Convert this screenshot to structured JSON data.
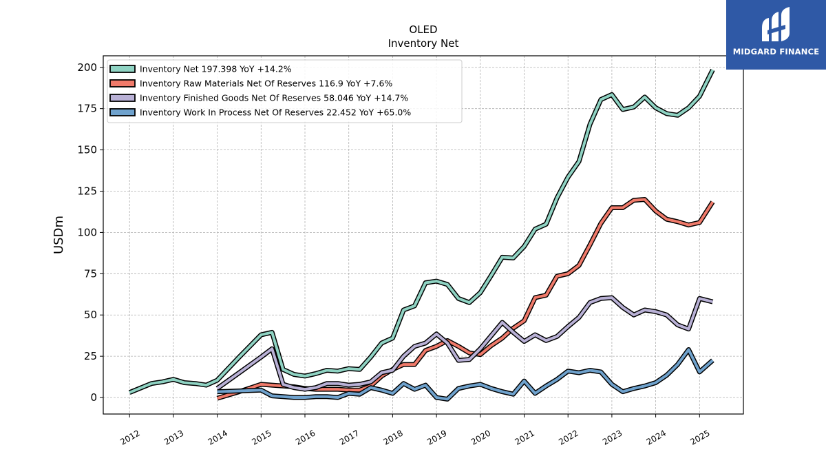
{
  "chart_data": {
    "type": "line",
    "title": "OLED",
    "subtitle": "Inventory Net",
    "xlabel": "",
    "ylabel": "USDm",
    "xlim": [
      2011.4,
      2026.0
    ],
    "ylim": [
      -10,
      207
    ],
    "x_ticks": [
      "2012",
      "2013",
      "2014",
      "2015",
      "2016",
      "2017",
      "2018",
      "2019",
      "2020",
      "2021",
      "2022",
      "2023",
      "2024",
      "2025"
    ],
    "y_ticks": [
      "0",
      "25",
      "50",
      "75",
      "100",
      "125",
      "150",
      "175",
      "200"
    ],
    "grid": true,
    "legend_position": "top-left",
    "series": [
      {
        "name": "Inventory Net",
        "legend_label": "Inventory Net  197.398 YoY +14.2%",
        "color": "#8fd3c3",
        "points": [
          [
            2012.0,
            3
          ],
          [
            2012.5,
            8.5
          ],
          [
            2012.75,
            9.5
          ],
          [
            2013.0,
            11
          ],
          [
            2013.25,
            9
          ],
          [
            2013.5,
            8.5
          ],
          [
            2013.75,
            7.5
          ],
          [
            2014.0,
            10.5
          ],
          [
            2014.5,
            24.5
          ],
          [
            2015.0,
            38
          ],
          [
            2015.25,
            39.5
          ],
          [
            2015.5,
            17
          ],
          [
            2015.75,
            14
          ],
          [
            2016.0,
            13
          ],
          [
            2016.25,
            14.5
          ],
          [
            2016.5,
            16.5
          ],
          [
            2016.75,
            16
          ],
          [
            2017.0,
            17.5
          ],
          [
            2017.25,
            17
          ],
          [
            2017.5,
            24.5
          ],
          [
            2017.75,
            33
          ],
          [
            2018.0,
            36
          ],
          [
            2018.25,
            53
          ],
          [
            2018.5,
            55.5
          ],
          [
            2018.75,
            69.5
          ],
          [
            2019.0,
            70.5
          ],
          [
            2019.25,
            68.5
          ],
          [
            2019.5,
            60
          ],
          [
            2019.75,
            57.5
          ],
          [
            2020.0,
            63.5
          ],
          [
            2020.25,
            74
          ],
          [
            2020.5,
            85
          ],
          [
            2020.75,
            84.5
          ],
          [
            2021.0,
            91.5
          ],
          [
            2021.25,
            102
          ],
          [
            2021.5,
            105
          ],
          [
            2021.75,
            121
          ],
          [
            2022.0,
            133.5
          ],
          [
            2022.25,
            143
          ],
          [
            2022.5,
            165.5
          ],
          [
            2022.75,
            180.5
          ],
          [
            2023.0,
            183.5
          ],
          [
            2023.25,
            174.5
          ],
          [
            2023.5,
            176
          ],
          [
            2023.75,
            182
          ],
          [
            2024.0,
            175.5
          ],
          [
            2024.25,
            172
          ],
          [
            2024.5,
            171
          ],
          [
            2024.75,
            175.5
          ],
          [
            2025.0,
            182.5
          ],
          [
            2025.3,
            198.5
          ]
        ]
      },
      {
        "name": "Inventory Raw Materials Net Of Reserves",
        "legend_label": "Inventory Raw Materials Net Of Reserves  116.9 YoY +7.6%",
        "color": "#f07a6a",
        "points": [
          [
            2014.0,
            -0.5
          ],
          [
            2014.5,
            3.5
          ],
          [
            2015.0,
            8
          ],
          [
            2015.25,
            7.5
          ],
          [
            2015.5,
            7
          ],
          [
            2015.75,
            6.5
          ],
          [
            2016.0,
            5.5
          ],
          [
            2016.25,
            5
          ],
          [
            2016.5,
            5
          ],
          [
            2016.75,
            5
          ],
          [
            2017.0,
            4.5
          ],
          [
            2017.25,
            4.5
          ],
          [
            2017.5,
            7
          ],
          [
            2017.75,
            13
          ],
          [
            2018.0,
            17
          ],
          [
            2018.25,
            20
          ],
          [
            2018.5,
            20
          ],
          [
            2018.75,
            28.5
          ],
          [
            2019.0,
            31
          ],
          [
            2019.25,
            34.5
          ],
          [
            2019.5,
            31
          ],
          [
            2019.75,
            27
          ],
          [
            2020.0,
            26
          ],
          [
            2020.25,
            31.5
          ],
          [
            2020.5,
            36
          ],
          [
            2020.75,
            42
          ],
          [
            2021.0,
            46.5
          ],
          [
            2021.25,
            60.5
          ],
          [
            2021.5,
            62
          ],
          [
            2021.75,
            73.5
          ],
          [
            2022.0,
            75
          ],
          [
            2022.25,
            80
          ],
          [
            2022.5,
            92.5
          ],
          [
            2022.75,
            105.5
          ],
          [
            2023.0,
            115
          ],
          [
            2023.25,
            115
          ],
          [
            2023.5,
            119.5
          ],
          [
            2023.75,
            120
          ],
          [
            2024.0,
            113
          ],
          [
            2024.25,
            108
          ],
          [
            2024.5,
            106.5
          ],
          [
            2024.75,
            104.5
          ],
          [
            2025.0,
            106
          ],
          [
            2025.3,
            118.5
          ]
        ]
      },
      {
        "name": "Inventory Finished Goods Net Of Reserves",
        "legend_label": "Inventory Finished Goods Net Of Reserves  58.046 YoY +14.7%",
        "color": "#b9b1d6",
        "points": [
          [
            2014.0,
            5.5
          ],
          [
            2014.5,
            15
          ],
          [
            2015.0,
            24.5
          ],
          [
            2015.25,
            29.5
          ],
          [
            2015.5,
            8
          ],
          [
            2015.75,
            6
          ],
          [
            2016.0,
            5
          ],
          [
            2016.25,
            6
          ],
          [
            2016.5,
            8.5
          ],
          [
            2016.75,
            8.5
          ],
          [
            2017.0,
            7.5
          ],
          [
            2017.25,
            8
          ],
          [
            2017.5,
            9.5
          ],
          [
            2017.75,
            15
          ],
          [
            2018.0,
            16.5
          ],
          [
            2018.25,
            25
          ],
          [
            2018.5,
            31
          ],
          [
            2018.75,
            33
          ],
          [
            2019.0,
            38.5
          ],
          [
            2019.25,
            33
          ],
          [
            2019.5,
            22.5
          ],
          [
            2019.75,
            23
          ],
          [
            2020.0,
            29.5
          ],
          [
            2020.25,
            37.5
          ],
          [
            2020.5,
            45.5
          ],
          [
            2020.75,
            39.5
          ],
          [
            2021.0,
            34
          ],
          [
            2021.25,
            38
          ],
          [
            2021.5,
            34.5
          ],
          [
            2021.75,
            37
          ],
          [
            2022.0,
            43
          ],
          [
            2022.25,
            48.5
          ],
          [
            2022.5,
            57.5
          ],
          [
            2022.75,
            60
          ],
          [
            2023.0,
            60.5
          ],
          [
            2023.25,
            54.5
          ],
          [
            2023.5,
            50
          ],
          [
            2023.75,
            53
          ],
          [
            2024.0,
            52
          ],
          [
            2024.25,
            50
          ],
          [
            2024.5,
            44
          ],
          [
            2024.75,
            41.5
          ],
          [
            2025.0,
            60
          ],
          [
            2025.3,
            58
          ]
        ]
      },
      {
        "name": "Inventory Work In Process Net Of Reserves",
        "legend_label": "Inventory Work In Process Net Of Reserves  22.452 YoY +65.0%",
        "color": "#6fa2cd",
        "points": [
          [
            2014.0,
            3.5
          ],
          [
            2014.5,
            4
          ],
          [
            2015.0,
            4.5
          ],
          [
            2015.25,
            1
          ],
          [
            2015.5,
            0.5
          ],
          [
            2015.75,
            0
          ],
          [
            2016.0,
            0
          ],
          [
            2016.25,
            0.5
          ],
          [
            2016.5,
            0.5
          ],
          [
            2016.75,
            0
          ],
          [
            2017.0,
            2.5
          ],
          [
            2017.25,
            2
          ],
          [
            2017.5,
            6
          ],
          [
            2017.75,
            4.5
          ],
          [
            2018.0,
            2.5
          ],
          [
            2018.25,
            8.5
          ],
          [
            2018.5,
            5
          ],
          [
            2018.75,
            7.5
          ],
          [
            2019.0,
            0
          ],
          [
            2019.25,
            -1
          ],
          [
            2019.5,
            5.5
          ],
          [
            2019.75,
            7
          ],
          [
            2020.0,
            8
          ],
          [
            2020.25,
            5.5
          ],
          [
            2020.5,
            3.5
          ],
          [
            2020.75,
            2
          ],
          [
            2021.0,
            10
          ],
          [
            2021.25,
            2.5
          ],
          [
            2021.5,
            7
          ],
          [
            2021.75,
            11
          ],
          [
            2022.0,
            16
          ],
          [
            2022.25,
            15
          ],
          [
            2022.5,
            16.5
          ],
          [
            2022.75,
            15.5
          ],
          [
            2023.0,
            8
          ],
          [
            2023.25,
            3.5
          ],
          [
            2023.5,
            5.5
          ],
          [
            2023.75,
            7
          ],
          [
            2024.0,
            9
          ],
          [
            2024.25,
            13.5
          ],
          [
            2024.5,
            20
          ],
          [
            2024.75,
            29
          ],
          [
            2025.0,
            15.5
          ],
          [
            2025.3,
            22.5
          ]
        ]
      }
    ]
  },
  "logo": {
    "text": "MIDGARD FINANCE",
    "background": "#2f59a6"
  }
}
